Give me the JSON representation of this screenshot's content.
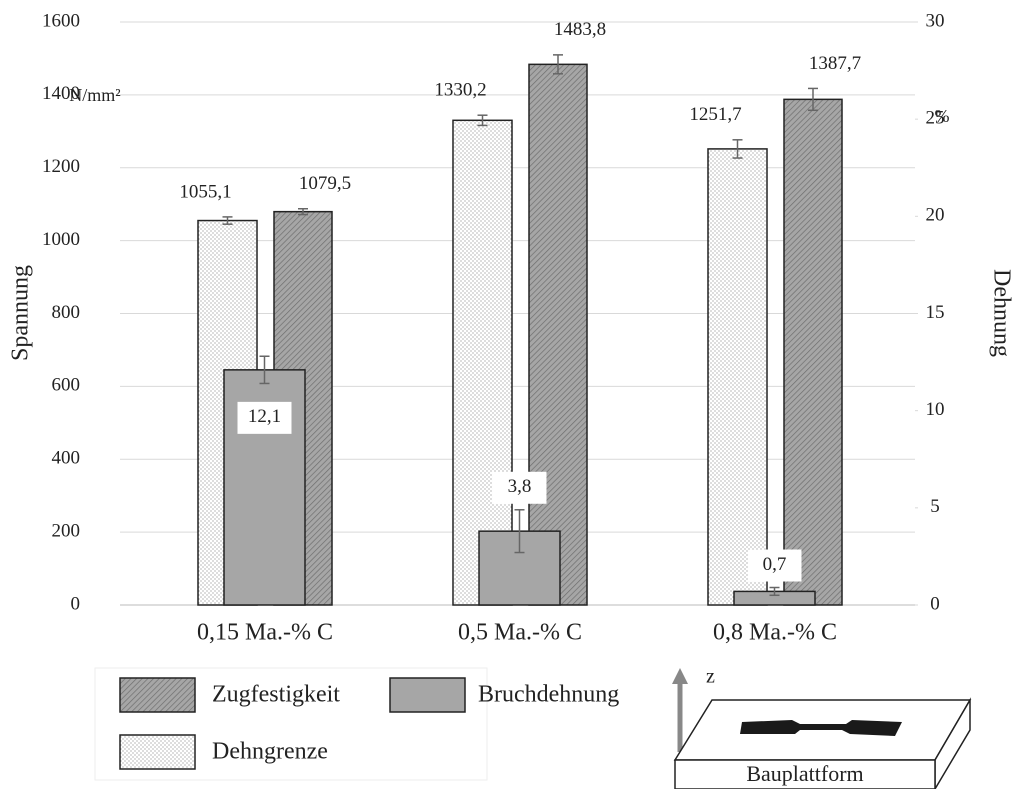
{
  "chart_data": {
    "type": "bar",
    "y_axis_title": "Spannung",
    "y_unit": "N/mm²",
    "y2_axis_title": "Dehnung",
    "y2_unit": "%",
    "categories": [
      "0,15 Ma.-% C",
      "0,5 Ma.-% C",
      "0,8 Ma.-% C"
    ],
    "series": [
      {
        "name": "Dehngrenze",
        "color": "#ffffff",
        "pattern": "dots",
        "values": [
          1055.1,
          1330.2,
          1251.7
        ],
        "errors": [
          10,
          14,
          25
        ],
        "value_labels": [
          "1055,1",
          "1330,2",
          "1251,7"
        ]
      },
      {
        "name": "Zugfestigkeit",
        "color": "#a6a6a6",
        "pattern": "hatch",
        "values": [
          1079.5,
          1483.8,
          1387.7
        ],
        "errors": [
          8,
          26,
          30
        ],
        "value_labels": [
          "1079,5",
          "1483,8",
          "1387,7"
        ]
      },
      {
        "name": "Bruchdehnung",
        "color": "#a6a6a6",
        "pattern": "solid",
        "axis": "y2",
        "values": [
          12.1,
          3.8,
          0.7
        ],
        "errors": [
          0.7,
          1.1,
          0.2
        ],
        "value_labels": [
          "12,1",
          "3,8",
          "0,7"
        ]
      }
    ],
    "ylim": [
      0,
      1600
    ],
    "yticks": [
      0,
      200,
      400,
      600,
      800,
      1000,
      1200,
      1400,
      1600
    ],
    "y2lim": [
      0,
      30
    ],
    "y2ticks": [
      0,
      5,
      10,
      15,
      20,
      25,
      30
    ],
    "grid": true,
    "annotations": [
      "z",
      "Bauplattform"
    ]
  }
}
